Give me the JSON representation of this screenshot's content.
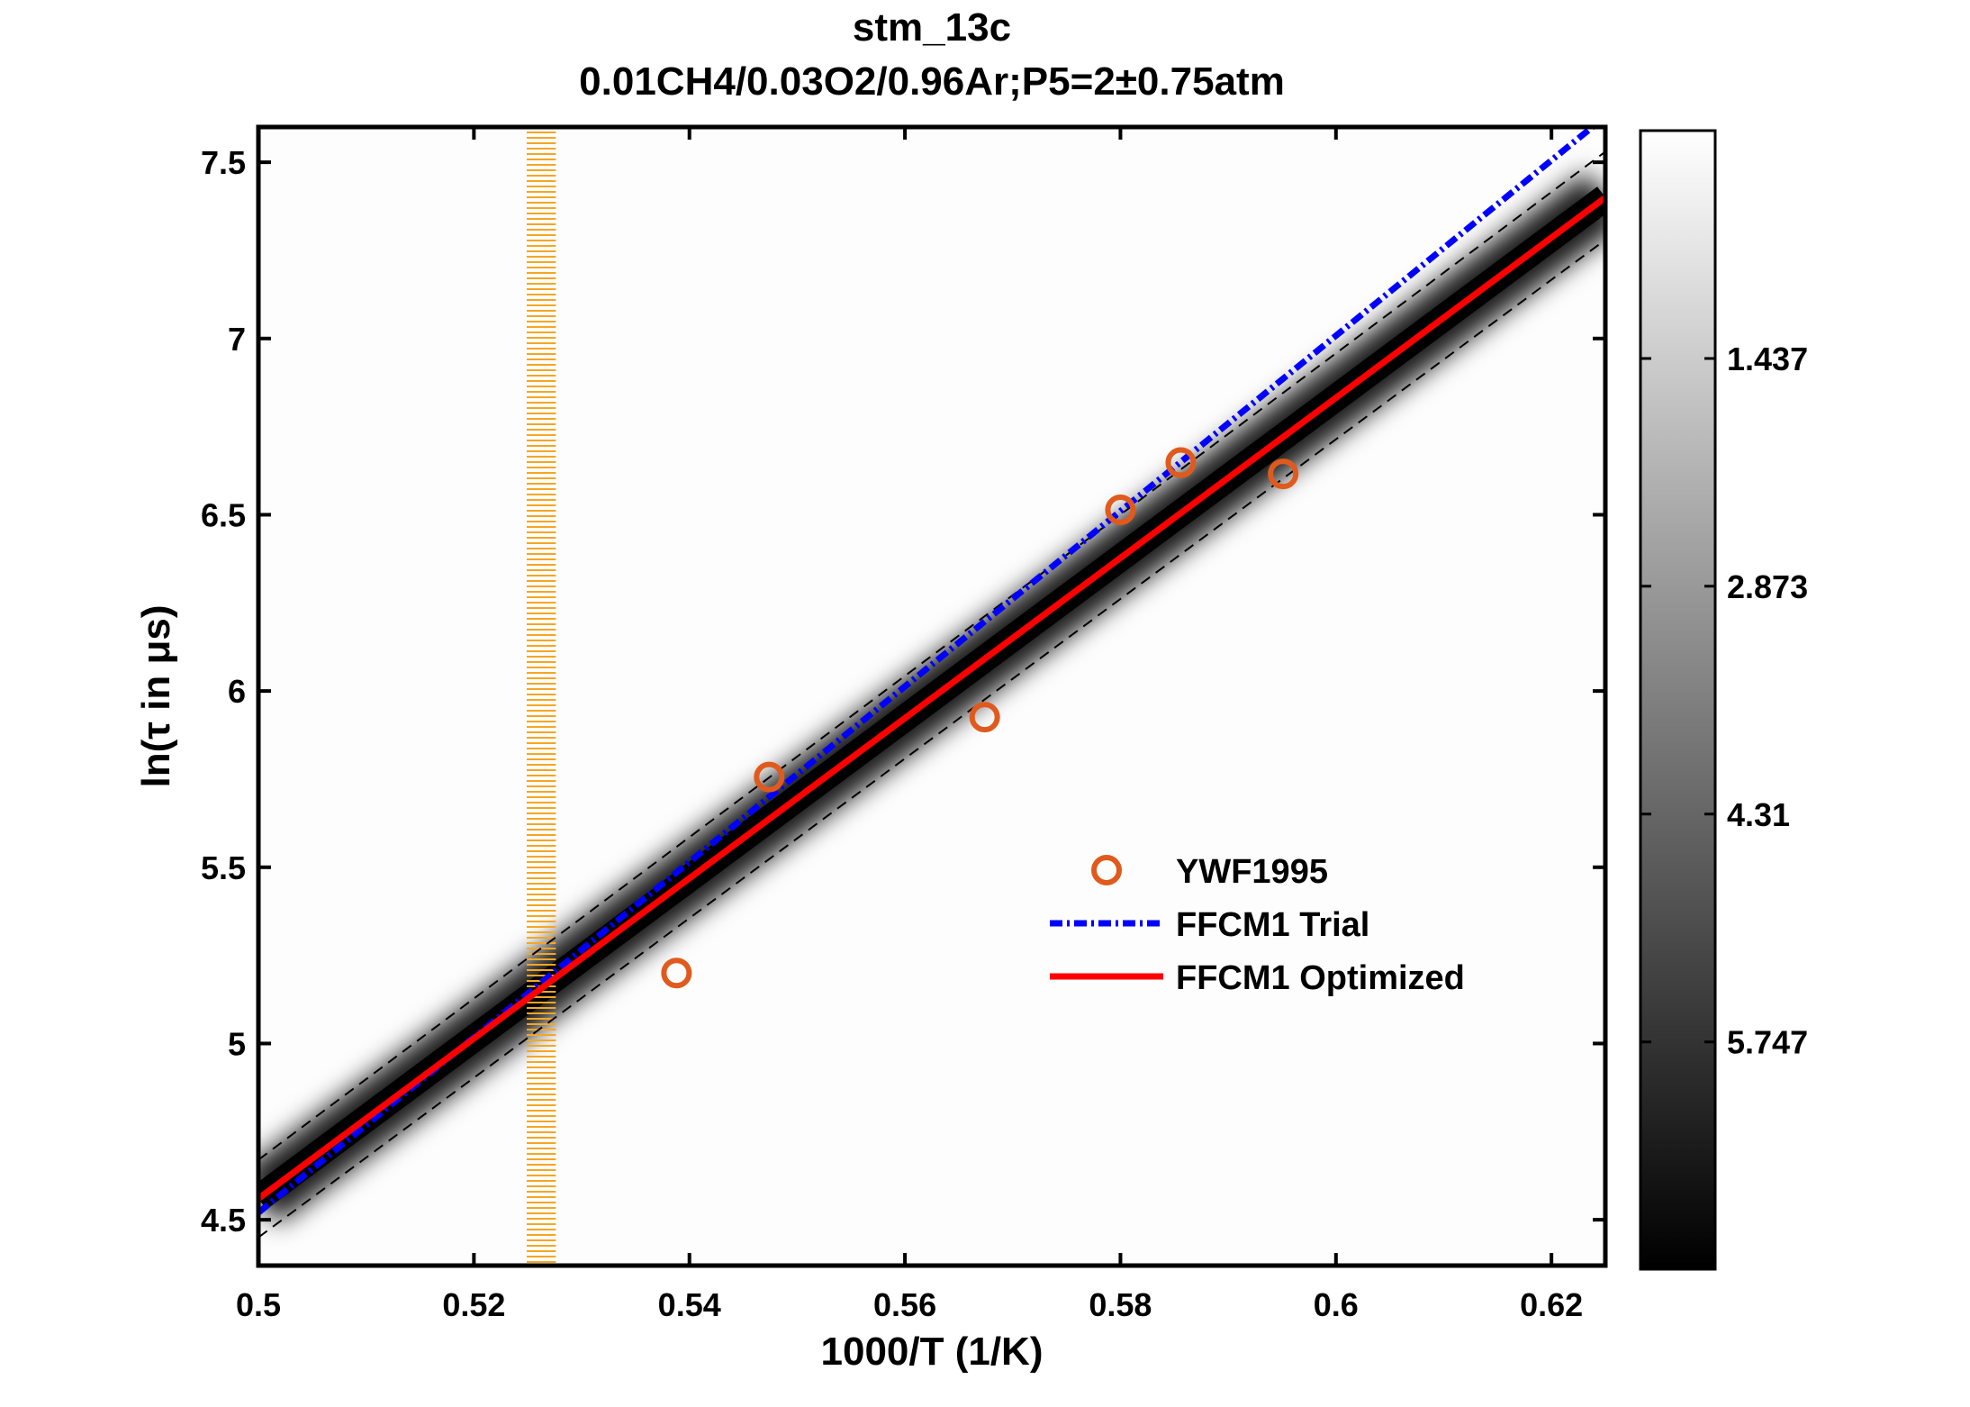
{
  "chart_data": {
    "type": "scatter",
    "title": "stm_13c",
    "subtitle": "0.01CH4/0.03O2/0.96Ar;P5=2±0.75atm",
    "xlabel": "1000/T (1/K)",
    "ylabel": "ln(τ in μs)",
    "xlim": [
      0.5,
      0.625
    ],
    "ylim": [
      4.37,
      7.6
    ],
    "xticks": [
      0.5,
      0.52,
      0.54,
      0.56,
      0.58,
      0.6,
      0.62
    ],
    "xtick_labels": [
      "0.5",
      "0.52",
      "0.54",
      "0.56",
      "0.58",
      "0.6",
      "0.62"
    ],
    "yticks": [
      4.5,
      5,
      5.5,
      6,
      6.5,
      7,
      7.5
    ],
    "ytick_labels": [
      "4.5",
      "5",
      "5.5",
      "6",
      "6.5",
      "7",
      "7.5"
    ],
    "grid": false,
    "legend_placement": "lower-right",
    "series": [
      {
        "name": "YWF1995",
        "kind": "markers",
        "marker": "circle",
        "color": "#e05a1e",
        "x": [
          0.5388,
          0.5474,
          0.5674,
          0.58,
          0.5856,
          0.5951
        ],
        "y": [
          5.2,
          5.756,
          5.926,
          6.514,
          6.648,
          6.616
        ]
      },
      {
        "name": "FFCM1 Trial",
        "kind": "line",
        "style": "dash-dot",
        "color": "#0000ff",
        "x": [
          0.5,
          0.625
        ],
        "y": [
          4.52,
          7.63
        ]
      },
      {
        "name": "FFCM1 Optimized",
        "kind": "line",
        "style": "solid",
        "color": "#ff0000",
        "x": [
          0.5,
          0.625
        ],
        "y": [
          4.56,
          7.4
        ]
      }
    ],
    "uncertainty_bounds": {
      "style": "dashed",
      "color": "#000000",
      "upper": {
        "x": [
          0.5,
          0.625
        ],
        "y": [
          4.67,
          7.53
        ]
      },
      "lower": {
        "x": [
          0.5,
          0.625
        ],
        "y": [
          4.45,
          7.28
        ]
      }
    },
    "highlight_band": {
      "x_range": [
        0.5249,
        0.5276
      ],
      "color": "#f5a623",
      "style": "hatched"
    },
    "background": "grayscale density centered on FFCM1 Optimized",
    "colorbar": {
      "colormap": "gray (reversed: white low, black high)",
      "range": [
        0,
        7.18
      ],
      "ticks": [
        1.437,
        2.873,
        4.31,
        5.747
      ],
      "tick_labels": [
        "1.437",
        "2.873",
        "4.31",
        "5.747"
      ]
    }
  }
}
